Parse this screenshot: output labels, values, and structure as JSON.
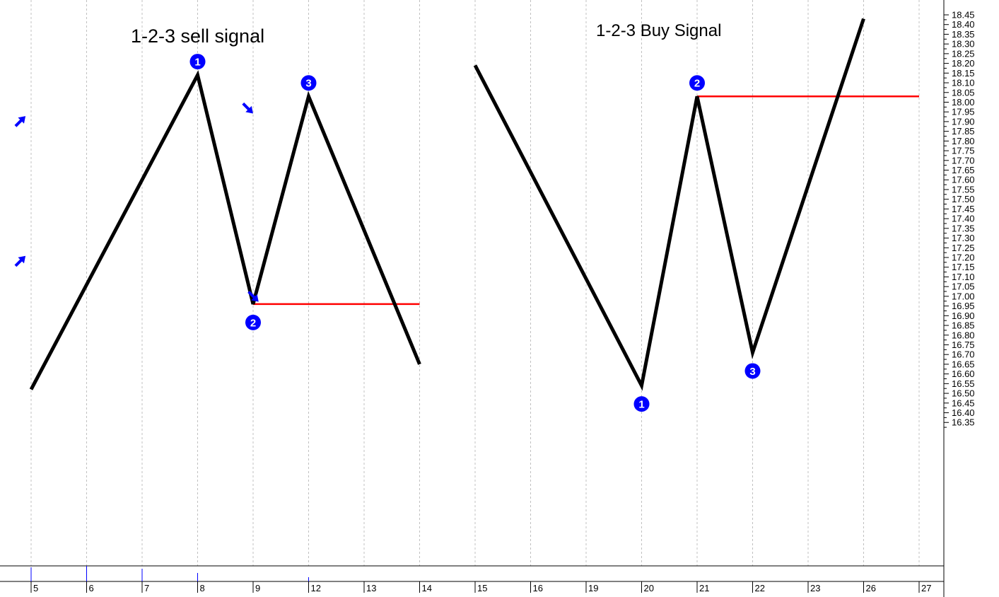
{
  "chart_data": {
    "type": "line",
    "x_tick_labels": [
      "5",
      "6",
      "7",
      "8",
      "9",
      "12",
      "13",
      "14",
      "15",
      "16",
      "19",
      "20",
      "21",
      "22",
      "23",
      "26",
      "27"
    ],
    "y_tick_labels": [
      "18.45",
      "18.40",
      "18.35",
      "18.30",
      "18.25",
      "18.20",
      "18.15",
      "18.10",
      "18.05",
      "18.00",
      "17.95",
      "17.90",
      "17.85",
      "17.80",
      "17.75",
      "17.70",
      "17.65",
      "17.60",
      "17.55",
      "17.50",
      "17.45",
      "17.40",
      "17.35",
      "17.30",
      "17.25",
      "17.20",
      "17.15",
      "17.10",
      "17.05",
      "17.00",
      "16.95",
      "16.90",
      "16.85",
      "16.80",
      "16.75",
      "16.70",
      "16.65",
      "16.60",
      "16.55",
      "16.50",
      "16.45",
      "16.40",
      "16.35"
    ],
    "ylim": [
      16.3,
      18.5
    ],
    "grid": true,
    "series": [
      {
        "x": [
          "5",
          "8",
          "9",
          "12",
          "14"
        ],
        "y": [
          16.52,
          18.14,
          16.96,
          18.03,
          16.65
        ],
        "color": "#000000"
      },
      {
        "x": [
          "15",
          "20",
          "21",
          "22",
          "26"
        ],
        "y": [
          18.19,
          16.54,
          18.03,
          16.71,
          18.43
        ],
        "color": "#000000"
      }
    ],
    "levels": [
      {
        "y": 16.96,
        "x_start": "9",
        "x_end": "14",
        "color": "#ff0000"
      },
      {
        "y": 18.03,
        "x_start": "21",
        "x_end": "27",
        "color": "#ff0000"
      }
    ],
    "annotations": [
      {
        "text": "1-2-3 sell signal",
        "kind": "title"
      },
      {
        "text": "1-2-3 Buy Signal",
        "kind": "title"
      }
    ],
    "markers": [
      {
        "label": "1",
        "x": "8",
        "y": 18.14,
        "side": "above"
      },
      {
        "label": "2",
        "x": "9",
        "y": 16.96,
        "side": "below"
      },
      {
        "label": "3",
        "x": "12",
        "y": 18.03,
        "side": "above"
      },
      {
        "label": "1",
        "x": "20",
        "y": 16.54,
        "side": "below"
      },
      {
        "label": "2",
        "x": "21",
        "y": 18.03,
        "side": "above"
      },
      {
        "label": "3",
        "x": "22",
        "y": 16.71,
        "side": "below"
      }
    ],
    "arrows": [
      {
        "x": "8.9",
        "y": 17.97,
        "dir": "down-right"
      },
      {
        "x": "9",
        "y": 17.0,
        "dir": "down-right"
      },
      {
        "x": "11.8",
        "y": 17.9,
        "dir": "up-right"
      },
      {
        "x": "11.8",
        "y": 17.18,
        "dir": "up-right"
      }
    ],
    "colors": {
      "line": "#000000",
      "level": "#ff0000",
      "marker": "#0000ff",
      "grid": "#c0c0c0"
    }
  }
}
